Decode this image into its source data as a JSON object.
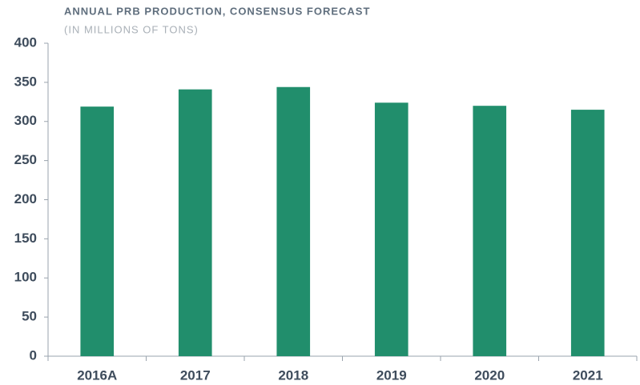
{
  "chart_data": {
    "type": "bar",
    "title": "ANNUAL PRB PRODUCTION, CONSENSUS FORECAST",
    "subtitle": "(IN MILLIONS OF TONS)",
    "categories": [
      "2016A",
      "2017",
      "2018",
      "2019",
      "2020",
      "2021"
    ],
    "values": [
      319,
      341,
      344,
      324,
      320,
      315
    ],
    "color": "#218e6c",
    "ylim": [
      0,
      400
    ],
    "yticks": [
      0,
      50,
      100,
      150,
      200,
      250,
      300,
      350,
      400
    ],
    "grid": false
  }
}
